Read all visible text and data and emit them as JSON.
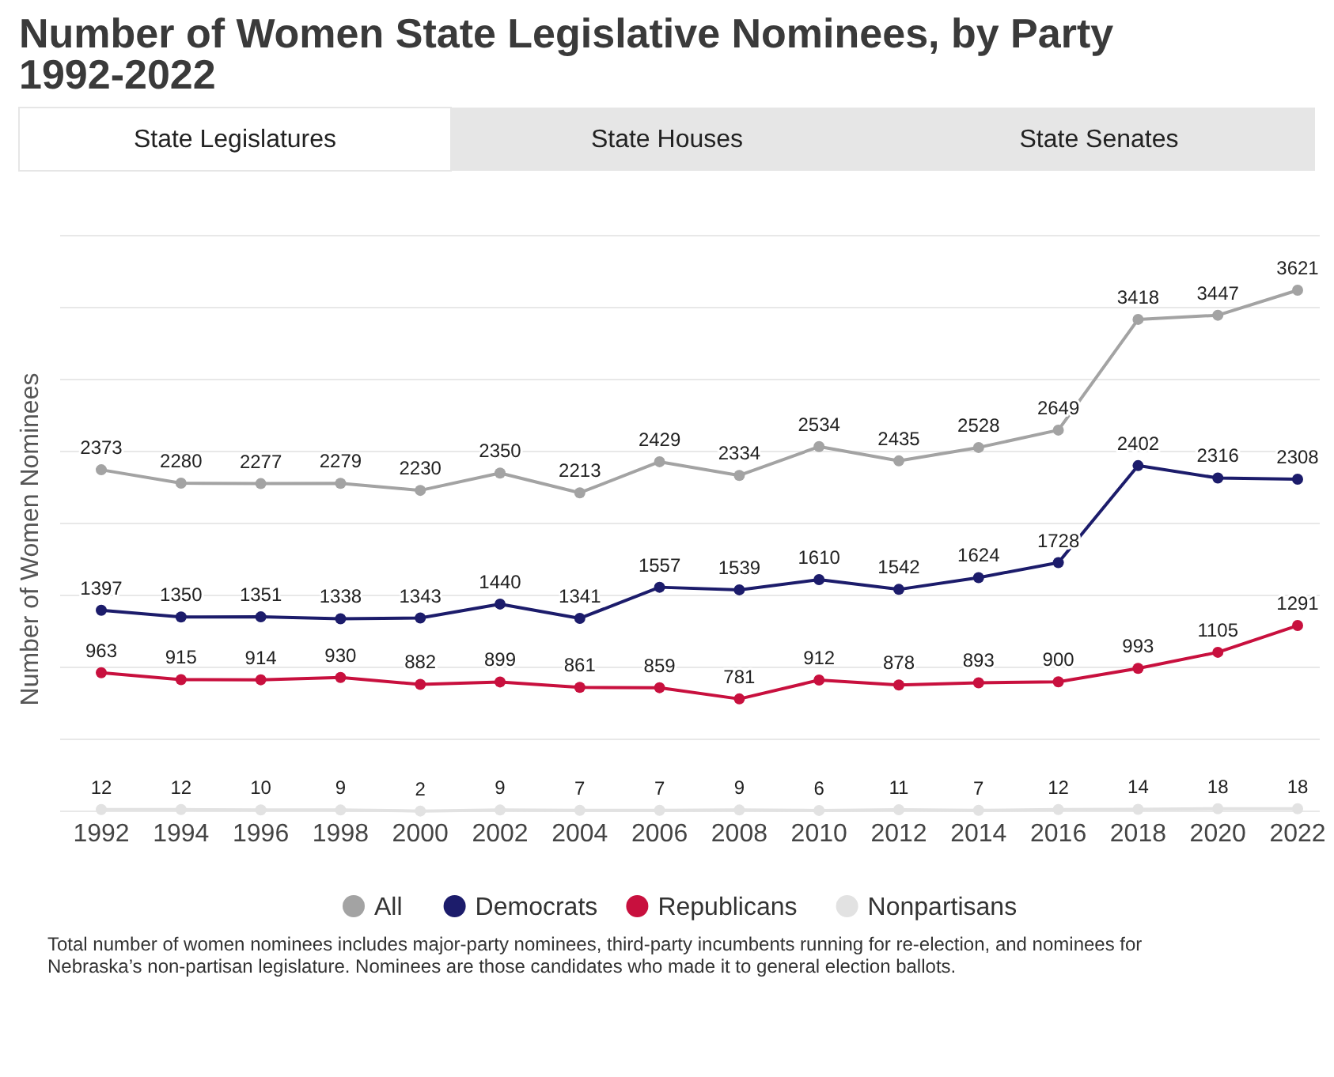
{
  "chart_data": {
    "type": "line",
    "title": "Number of Women State Legislative Nominees, by Party 1992-2022",
    "ylabel": "Number of Women Nominees",
    "categories": [
      "1992",
      "1994",
      "1996",
      "1998",
      "2000",
      "2002",
      "2004",
      "2006",
      "2008",
      "2010",
      "2012",
      "2014",
      "2016",
      "2018",
      "2020",
      "2022"
    ],
    "series": [
      {
        "name": "All",
        "color": "#a3a3a3",
        "values": [
          2373,
          2280,
          2277,
          2279,
          2230,
          2350,
          2213,
          2429,
          2334,
          2534,
          2435,
          2528,
          2649,
          3418,
          3447,
          3621
        ]
      },
      {
        "name": "Democrats",
        "color": "#1c1c6b",
        "values": [
          1397,
          1350,
          1351,
          1338,
          1343,
          1440,
          1341,
          1557,
          1539,
          1610,
          1542,
          1624,
          1728,
          2402,
          2316,
          2308
        ]
      },
      {
        "name": "Republicans",
        "color": "#c8103e",
        "values": [
          963,
          915,
          914,
          930,
          882,
          899,
          861,
          859,
          781,
          912,
          878,
          893,
          900,
          993,
          1105,
          1291
        ]
      },
      {
        "name": "Nonpartisans",
        "color": "#e2e2e2",
        "values": [
          12,
          12,
          10,
          9,
          2,
          9,
          7,
          7,
          9,
          6,
          11,
          7,
          12,
          14,
          18,
          18
        ]
      }
    ],
    "ylim": [
      0,
      4000
    ],
    "yticks": [
      {
        "value": 0,
        "label": null
      },
      {
        "value": 500,
        "label": null
      },
      {
        "value": 1000,
        "label": null
      },
      {
        "value": 1500,
        "label": null
      },
      {
        "value": 2000,
        "label": null
      },
      {
        "value": 2500,
        "label": null
      },
      {
        "value": 3000,
        "label": null
      },
      {
        "value": 3500,
        "label": null
      },
      {
        "value": 4000,
        "label": null
      }
    ],
    "tick_labels": "x",
    "grid": "y",
    "legend": "bottom",
    "marker": "circle",
    "line_style": "solid",
    "data_labels": true,
    "annotations": [
      "State Legislatures",
      "State Houses",
      "State Senates",
      "Total number of women nominees includes major-party nominees, third-party incumbents running for re-election, and nominees for Nebraska’s non-partisan legislature. Nominees are those candidates who made it to general election ballots."
    ]
  }
}
